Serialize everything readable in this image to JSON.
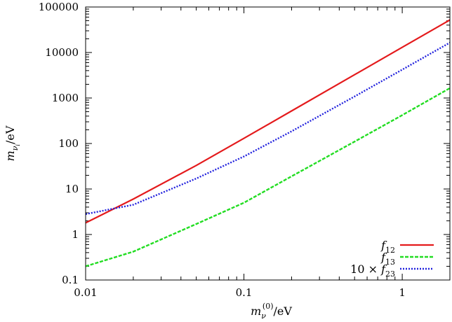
{
  "chart_data": {
    "type": "line",
    "title": "",
    "xlabel": {
      "base": "m",
      "sub": "ν",
      "sup": "(0)",
      "unit": "/eV"
    },
    "ylabel": {
      "base": "m",
      "sub": "ν",
      "subsub": "i",
      "unit": "/eV"
    },
    "xscale": "log",
    "yscale": "log",
    "xlim": [
      0.01,
      2.0
    ],
    "ylim": [
      0.1,
      100000
    ],
    "xticks": [
      {
        "value": 0.01,
        "label": "0.01"
      },
      {
        "value": 0.1,
        "label": "0.1"
      },
      {
        "value": 1,
        "label": "1"
      }
    ],
    "yticks": [
      {
        "value": 0.1,
        "label": "0.1"
      },
      {
        "value": 1,
        "label": "1"
      },
      {
        "value": 10,
        "label": "10"
      },
      {
        "value": 100,
        "label": "100"
      },
      {
        "value": 1000,
        "label": "1000"
      },
      {
        "value": 10000,
        "label": "10000"
      },
      {
        "value": 100000,
        "label": "100000"
      }
    ],
    "grid": false,
    "legend_position": "bottom-right",
    "series": [
      {
        "name": "f12",
        "label": {
          "prefix": "",
          "base": "f",
          "sub": "12"
        },
        "color": "#e41a1c",
        "dash": "solid",
        "x": [
          0.01,
          0.02,
          0.05,
          0.1,
          0.2,
          0.5,
          1,
          2
        ],
        "y": [
          1.8,
          6.0,
          33,
          130,
          520,
          3250,
          13000,
          52000
        ]
      },
      {
        "name": "f13",
        "label": {
          "prefix": "",
          "base": "f",
          "sub": "13"
        },
        "color": "#22dd22",
        "dash": "dashed",
        "x": [
          0.01,
          0.02,
          0.05,
          0.1,
          0.2,
          0.5,
          1,
          2
        ],
        "y": [
          0.2,
          0.42,
          1.7,
          5.0,
          19,
          110,
          420,
          1650
        ]
      },
      {
        "name": "10 × f23",
        "label": {
          "prefix": "10 × ",
          "base": "f",
          "sub": "23"
        },
        "color": "#2222dd",
        "dash": "dotted",
        "x": [
          0.01,
          0.02,
          0.05,
          0.1,
          0.2,
          0.5,
          1,
          2
        ],
        "y": [
          2.8,
          4.5,
          17,
          52,
          185,
          1080,
          4200,
          16500
        ]
      }
    ]
  }
}
